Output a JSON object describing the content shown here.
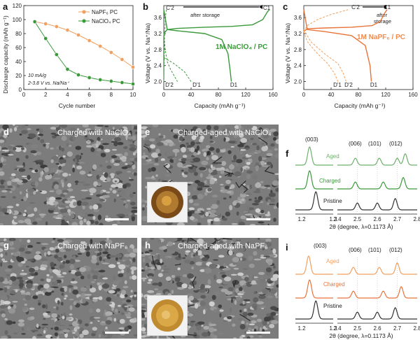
{
  "panels": {
    "a": {
      "letter": "a",
      "ylabel": "Discharge capacity (mAh g⁻¹)",
      "xlabel": "Cycle number",
      "legend": [
        "NaPF₆ PC",
        "NaClO₄ PC"
      ],
      "note1": "10 mA/g",
      "note2": "2-3.8 V vs. Na/Na⁺"
    },
    "b": {
      "letter": "b",
      "ylabel": "Voltage (V vs. Na⁺/Na)",
      "xlabel": "Capacity (mAh g⁻¹)",
      "title": "1M NaClO₄ / PC",
      "arrow_label": "after storage",
      "points": [
        "C'2",
        "C1",
        "D'2",
        "D'1",
        "D1"
      ]
    },
    "c": {
      "letter": "c",
      "ylabel": "Voltage (V vs. Na⁺/Na)",
      "xlabel": "Capacity (mAh g⁻¹)",
      "title": "1M NaPF₆ / PC",
      "arrow_label_1": "after",
      "arrow_label_2": "storage",
      "points": [
        "C'2",
        "C1",
        "D'1",
        "D'2",
        "D1"
      ]
    },
    "d": {
      "letter": "d",
      "title": "Charged with NaClO₄"
    },
    "e": {
      "letter": "e",
      "title": "Charged-aged with NaClO₄"
    },
    "g": {
      "letter": "g",
      "title": "Charged with NaPF₆"
    },
    "h": {
      "letter": "h",
      "title": "Charged-aged with NaPF₆"
    },
    "f": {
      "letter": "f",
      "peaks": [
        "(003)",
        "(006)",
        "(101)",
        "(012)"
      ],
      "traces": [
        "Aged",
        "Charged",
        "Pristine"
      ],
      "xlabel": "2θ (degree, λ=0.1173 Å)"
    },
    "i": {
      "letter": "i",
      "peaks": [
        "(003)",
        "(006)",
        "(101)",
        "(012)"
      ],
      "traces": [
        "Aged",
        "Charged",
        "Pristine"
      ],
      "xlabel": "2θ (degree, λ=0.1173 Å)"
    }
  },
  "colors": {
    "naclo4": "#3a9a3a",
    "napf6": "#f0a060",
    "napf6_dark": "#e8743a",
    "pristine": "#333333"
  },
  "chart_data": [
    {
      "type": "scatter",
      "panel": "a",
      "x": [
        1,
        2,
        3,
        4,
        5,
        6,
        7,
        8,
        9,
        10
      ],
      "series": [
        {
          "name": "NaPF₆ PC",
          "values": [
            97,
            94,
            90,
            85,
            78,
            70,
            62,
            53,
            43,
            32
          ]
        },
        {
          "name": "NaClO₄ PC",
          "values": [
            97,
            73,
            50,
            29,
            21,
            17,
            14,
            12,
            10,
            8
          ]
        }
      ],
      "xlim": [
        0,
        10
      ],
      "ylim": [
        0,
        120
      ],
      "xticks": [
        0,
        2,
        4,
        6,
        8,
        10
      ],
      "yticks": [
        0,
        20,
        40,
        60,
        80,
        100,
        120
      ]
    },
    {
      "type": "line",
      "panel": "b",
      "xlim": [
        0,
        160
      ],
      "ylim": [
        1.8,
        3.9
      ],
      "xticks": [
        0,
        40,
        80,
        120,
        160
      ],
      "yticks": [
        2.0,
        2.4,
        2.8,
        3.2,
        3.6
      ],
      "series": [
        {
          "name": "C1",
          "x": [
            0,
            5,
            20,
            60,
            100,
            130,
            145,
            152,
            155
          ],
          "y": [
            3.2,
            3.3,
            3.33,
            3.36,
            3.38,
            3.42,
            3.55,
            3.75,
            3.8
          ]
        },
        {
          "name": "D1",
          "x": [
            0,
            5,
            20,
            60,
            85,
            94,
            97,
            99
          ],
          "y": [
            3.8,
            3.3,
            3.27,
            3.2,
            3.05,
            2.7,
            2.3,
            2.0
          ]
        },
        {
          "name": "C'2",
          "x": [
            0,
            1,
            2,
            3,
            4
          ],
          "y": [
            2.0,
            3.1,
            3.5,
            3.7,
            3.8
          ]
        },
        {
          "name": "D'2",
          "x": [
            0,
            2,
            5,
            10,
            20
          ],
          "y": [
            3.2,
            2.8,
            2.5,
            2.3,
            2.0
          ]
        },
        {
          "name": "D'1",
          "x": [
            0,
            5,
            15,
            30,
            40
          ],
          "y": [
            2.6,
            2.55,
            2.45,
            2.25,
            2.0
          ]
        }
      ]
    },
    {
      "type": "line",
      "panel": "c",
      "xlim": [
        0,
        160
      ],
      "ylim": [
        1.8,
        3.9
      ],
      "xticks": [
        0,
        40,
        80,
        120,
        160
      ],
      "yticks": [
        2.0,
        2.4,
        2.8,
        3.2,
        3.6
      ],
      "series": [
        {
          "name": "C1",
          "x": [
            0,
            5,
            30,
            70,
            100,
            112,
            118,
            122
          ],
          "y": [
            3.25,
            3.32,
            3.34,
            3.36,
            3.4,
            3.5,
            3.7,
            3.8
          ]
        },
        {
          "name": "D1",
          "x": [
            0,
            5,
            30,
            70,
            90,
            97,
            99
          ],
          "y": [
            3.8,
            3.3,
            3.25,
            3.15,
            2.9,
            2.4,
            2.0
          ]
        },
        {
          "name": "C'2",
          "x": [
            0,
            5,
            20,
            40,
            55,
            65
          ],
          "y": [
            3.25,
            3.4,
            3.55,
            3.68,
            3.75,
            3.8
          ]
        },
        {
          "name": "D'1",
          "x": [
            0,
            5,
            20,
            35,
            45,
            50
          ],
          "y": [
            3.25,
            3.0,
            2.7,
            2.45,
            2.2,
            2.0
          ]
        },
        {
          "name": "D'2",
          "x": [
            0,
            10,
            30,
            50,
            58,
            62
          ],
          "y": [
            3.3,
            3.0,
            2.7,
            2.45,
            2.2,
            2.0
          ]
        }
      ]
    },
    {
      "type": "line",
      "panel": "f",
      "xlim_left": [
        1.18,
        1.3
      ],
      "xlim_right": [
        2.4,
        2.8
      ],
      "xticks_left": [
        1.2,
        1.3
      ],
      "xticks_right": [
        2.4,
        2.5,
        2.6,
        2.7,
        2.8
      ],
      "series": [
        {
          "name": "Aged",
          "peaks_left": [
            1.225
          ],
          "peaks_right": [
            2.49,
            2.61,
            2.7,
            2.74
          ]
        },
        {
          "name": "Charged",
          "peaks_left": [
            1.225
          ],
          "peaks_right": [
            2.49,
            2.63,
            2.73
          ]
        },
        {
          "name": "Pristine",
          "peaks_left": [
            1.245
          ],
          "peaks_right": [
            2.5,
            2.6,
            2.69
          ]
        }
      ]
    },
    {
      "type": "line",
      "panel": "i",
      "xlim_left": [
        1.18,
        1.3
      ],
      "xlim_right": [
        2.4,
        2.8
      ],
      "xticks_left": [
        1.2,
        1.3
      ],
      "xticks_right": [
        2.4,
        2.5,
        2.6,
        2.7,
        2.8
      ],
      "series": [
        {
          "name": "Aged",
          "peaks_left": [
            1.222
          ],
          "peaks_right": [
            2.48,
            2.61,
            2.7
          ]
        },
        {
          "name": "Charged",
          "peaks_left": [
            1.225
          ],
          "peaks_right": [
            2.48,
            2.63,
            2.72
          ]
        },
        {
          "name": "Pristine",
          "peaks_left": [
            1.245
          ],
          "peaks_right": [
            2.5,
            2.6,
            2.69
          ]
        }
      ]
    }
  ]
}
